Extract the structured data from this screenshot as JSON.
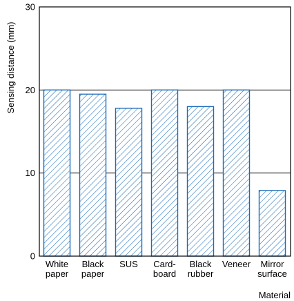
{
  "chart_data": {
    "type": "bar",
    "categories": [
      [
        "White",
        "paper"
      ],
      [
        "Black",
        "paper"
      ],
      [
        "SUS"
      ],
      [
        "Card-",
        "board"
      ],
      [
        "Black",
        "rubber"
      ],
      [
        "Veneer"
      ],
      [
        "Mirror",
        "surface"
      ]
    ],
    "values": [
      20,
      19.5,
      17.8,
      20,
      18,
      20,
      7.9
    ],
    "xlabel": "Material",
    "ylabel": "Sensing distance (mm)",
    "ylim": [
      0,
      30
    ],
    "yticks": [
      0,
      10,
      20,
      30
    ],
    "gridlines_y": [
      10,
      20
    ],
    "bar_color": "#1a6bb8",
    "bar_fill": "hatched",
    "grid": true
  }
}
